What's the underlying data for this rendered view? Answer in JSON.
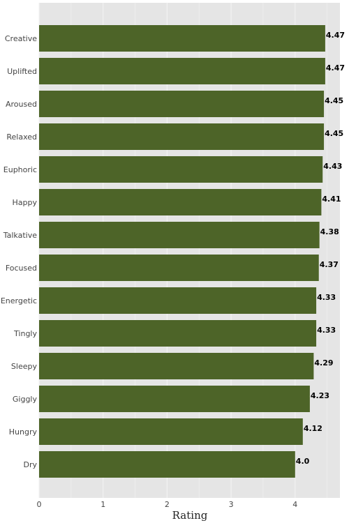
{
  "chart_data": {
    "type": "bar",
    "orientation": "horizontal",
    "categories": [
      "Creative",
      "Uplifted",
      "Aroused",
      "Relaxed",
      "Euphoric",
      "Happy",
      "Talkative",
      "Focused",
      "Energetic",
      "Tingly",
      "Sleepy",
      "Giggly",
      "Hungry",
      "Dry"
    ],
    "values": [
      4.47,
      4.47,
      4.45,
      4.45,
      4.43,
      4.41,
      4.38,
      4.37,
      4.33,
      4.33,
      4.29,
      4.23,
      4.12,
      4.0
    ],
    "data_labels": [
      "4.47",
      "4.47",
      "4.45",
      "4.45",
      "4.43",
      "4.41",
      "4.38",
      "4.37",
      "4.33",
      "4.33",
      "4.29",
      "4.23",
      "4.12",
      "4.0"
    ],
    "xlabel": "Rating",
    "ylabel": "",
    "xlim": [
      0,
      4.7
    ],
    "xticks": [
      0,
      1,
      2,
      3,
      4
    ],
    "grid": true,
    "colors": {
      "bar": "#4d6428",
      "background": "#e5e5e5",
      "grid": "#f2f2f2"
    }
  }
}
